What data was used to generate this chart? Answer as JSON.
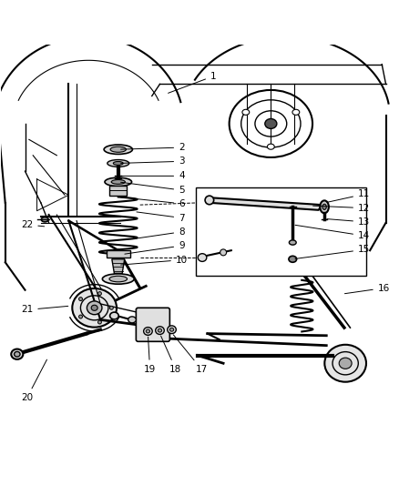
{
  "title": "",
  "background_color": "#ffffff",
  "line_color": "#000000",
  "gray_color": "#888888",
  "light_gray": "#cccccc",
  "figsize": [
    4.38,
    5.33
  ],
  "dpi": 100
}
